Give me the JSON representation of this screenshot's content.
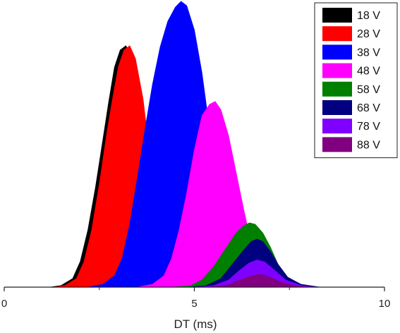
{
  "chart_data": {
    "type": "area",
    "xlabel": "DT (ms)",
    "ylabel": "",
    "xlim": [
      0,
      10
    ],
    "ylim": [
      0,
      1.0
    ],
    "x_ticks": [
      0,
      5,
      10
    ],
    "x_tick_labels": [
      "0",
      "5",
      "10"
    ],
    "x_minor_ticks": [
      2.5,
      7.5
    ],
    "grid": false,
    "legend_position": "top-right",
    "series": [
      {
        "name": "18 V",
        "color": "#000000",
        "points": [
          [
            1.2,
            0
          ],
          [
            1.5,
            0.006
          ],
          [
            1.8,
            0.03
          ],
          [
            2.0,
            0.09
          ],
          [
            2.2,
            0.2
          ],
          [
            2.4,
            0.35
          ],
          [
            2.6,
            0.52
          ],
          [
            2.75,
            0.65
          ],
          [
            2.9,
            0.77
          ],
          [
            3.05,
            0.83
          ],
          [
            3.2,
            0.845
          ],
          [
            3.35,
            0.8
          ],
          [
            3.55,
            0.66
          ],
          [
            3.75,
            0.44
          ],
          [
            3.95,
            0.2
          ],
          [
            4.15,
            0.07
          ],
          [
            4.4,
            0.015
          ],
          [
            4.8,
            0
          ]
        ]
      },
      {
        "name": "28 V",
        "color": "#ff0000",
        "points": [
          [
            1.3,
            0
          ],
          [
            1.6,
            0.006
          ],
          [
            1.9,
            0.03
          ],
          [
            2.1,
            0.09
          ],
          [
            2.3,
            0.2
          ],
          [
            2.5,
            0.36
          ],
          [
            2.7,
            0.54
          ],
          [
            2.85,
            0.66
          ],
          [
            3.0,
            0.77
          ],
          [
            3.15,
            0.83
          ],
          [
            3.3,
            0.845
          ],
          [
            3.45,
            0.8
          ],
          [
            3.65,
            0.66
          ],
          [
            3.85,
            0.44
          ],
          [
            4.05,
            0.2
          ],
          [
            4.25,
            0.07
          ],
          [
            4.5,
            0.015
          ],
          [
            4.9,
            0
          ]
        ]
      },
      {
        "name": "38 V",
        "color": "#0000ff",
        "points": [
          [
            2.2,
            0
          ],
          [
            2.6,
            0.01
          ],
          [
            2.9,
            0.04
          ],
          [
            3.1,
            0.1
          ],
          [
            3.3,
            0.22
          ],
          [
            3.5,
            0.38
          ],
          [
            3.7,
            0.55
          ],
          [
            3.9,
            0.71
          ],
          [
            4.1,
            0.84
          ],
          [
            4.3,
            0.93
          ],
          [
            4.5,
            0.98
          ],
          [
            4.65,
            1.0
          ],
          [
            4.8,
            0.985
          ],
          [
            5.0,
            0.9
          ],
          [
            5.2,
            0.75
          ],
          [
            5.4,
            0.55
          ],
          [
            5.6,
            0.35
          ],
          [
            5.8,
            0.19
          ],
          [
            6.0,
            0.08
          ],
          [
            6.3,
            0.02
          ],
          [
            6.8,
            0
          ]
        ]
      },
      {
        "name": "48 V",
        "color": "#ff00ff",
        "points": [
          [
            3.5,
            0
          ],
          [
            3.9,
            0.01
          ],
          [
            4.2,
            0.04
          ],
          [
            4.4,
            0.1
          ],
          [
            4.6,
            0.2
          ],
          [
            4.8,
            0.33
          ],
          [
            5.0,
            0.48
          ],
          [
            5.2,
            0.6
          ],
          [
            5.4,
            0.64
          ],
          [
            5.55,
            0.65
          ],
          [
            5.7,
            0.62
          ],
          [
            5.9,
            0.53
          ],
          [
            6.1,
            0.4
          ],
          [
            6.3,
            0.27
          ],
          [
            6.5,
            0.15
          ],
          [
            6.7,
            0.07
          ],
          [
            7.0,
            0.02
          ],
          [
            7.4,
            0
          ]
        ]
      },
      {
        "name": "58 V",
        "color": "#007f00",
        "points": [
          [
            4.4,
            0
          ],
          [
            4.9,
            0.005
          ],
          [
            5.2,
            0.025
          ],
          [
            5.5,
            0.07
          ],
          [
            5.8,
            0.13
          ],
          [
            6.1,
            0.19
          ],
          [
            6.3,
            0.215
          ],
          [
            6.45,
            0.225
          ],
          [
            6.6,
            0.22
          ],
          [
            6.8,
            0.19
          ],
          [
            7.0,
            0.14
          ],
          [
            7.2,
            0.08
          ],
          [
            7.45,
            0.035
          ],
          [
            7.8,
            0.008
          ],
          [
            8.2,
            0
          ]
        ]
      },
      {
        "name": "68 V",
        "color": "#000080",
        "points": [
          [
            4.8,
            0
          ],
          [
            5.3,
            0.005
          ],
          [
            5.7,
            0.03
          ],
          [
            6.0,
            0.08
          ],
          [
            6.3,
            0.13
          ],
          [
            6.5,
            0.16
          ],
          [
            6.65,
            0.168
          ],
          [
            6.8,
            0.16
          ],
          [
            7.0,
            0.125
          ],
          [
            7.2,
            0.08
          ],
          [
            7.45,
            0.035
          ],
          [
            7.8,
            0.01
          ],
          [
            8.3,
            0
          ]
        ]
      },
      {
        "name": "78 V",
        "color": "#8000ff",
        "points": [
          [
            5.0,
            0
          ],
          [
            5.5,
            0.005
          ],
          [
            5.9,
            0.025
          ],
          [
            6.2,
            0.06
          ],
          [
            6.45,
            0.085
          ],
          [
            6.65,
            0.095
          ],
          [
            6.85,
            0.088
          ],
          [
            7.1,
            0.06
          ],
          [
            7.4,
            0.025
          ],
          [
            7.8,
            0.006
          ],
          [
            8.2,
            0
          ]
        ]
      },
      {
        "name": "88 V",
        "color": "#800080",
        "points": [
          [
            5.3,
            0
          ],
          [
            5.8,
            0.005
          ],
          [
            6.2,
            0.025
          ],
          [
            6.5,
            0.04
          ],
          [
            6.7,
            0.045
          ],
          [
            6.9,
            0.04
          ],
          [
            7.2,
            0.022
          ],
          [
            7.6,
            0.006
          ],
          [
            8.0,
            0
          ]
        ]
      }
    ]
  }
}
